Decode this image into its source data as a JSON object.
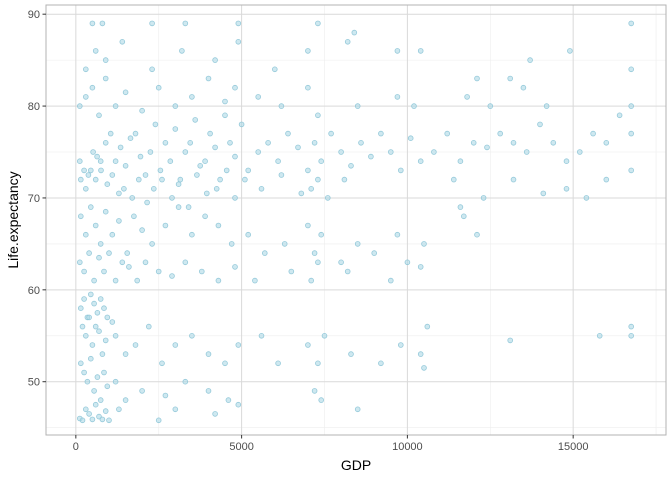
{
  "chart_data": {
    "type": "scatter",
    "title": "",
    "xlabel": "GDP",
    "ylabel": "Life.expectancy",
    "xlim": [
      -900,
      17800
    ],
    "ylim": [
      44.2,
      91
    ],
    "x_ticks": [
      0,
      5000,
      10000,
      15000
    ],
    "x_tick_labels": [
      "0",
      "5000",
      "10000",
      "15000"
    ],
    "y_ticks": [
      50,
      60,
      70,
      80,
      90
    ],
    "y_tick_labels": [
      "50",
      "60",
      "70",
      "80",
      "90"
    ],
    "grid": true,
    "legend": "none",
    "colors": {
      "point_fill": "#add8e6",
      "point_stroke": "#8cc4d6",
      "grid_major": "#d9d9d9",
      "grid_minor": "#ededed",
      "panel_border": "#b3b3b3",
      "background": "#ffffff"
    },
    "series": [
      {
        "points": [
          [
            120,
            74
          ],
          [
            250,
            73
          ],
          [
            380,
            72.5
          ],
          [
            520,
            75
          ],
          [
            640,
            74.5
          ],
          [
            760,
            73
          ],
          [
            900,
            76
          ],
          [
            1050,
            77
          ],
          [
            1200,
            74
          ],
          [
            1350,
            75.5
          ],
          [
            1500,
            73.5
          ],
          [
            1650,
            76.5
          ],
          [
            1800,
            77
          ],
          [
            1950,
            74.5
          ],
          [
            2100,
            72.5
          ],
          [
            2250,
            75
          ],
          [
            2400,
            78
          ],
          [
            2550,
            73
          ],
          [
            2700,
            76
          ],
          [
            2850,
            74
          ],
          [
            3000,
            77.5
          ],
          [
            3150,
            72
          ],
          [
            3300,
            75
          ],
          [
            3450,
            76
          ],
          [
            3600,
            78.5
          ],
          [
            3750,
            73.5
          ],
          [
            3900,
            74
          ],
          [
            4050,
            77
          ],
          [
            4200,
            75.5
          ],
          [
            4350,
            72
          ],
          [
            4500,
            79
          ],
          [
            4650,
            76
          ],
          [
            4800,
            74.5
          ],
          [
            5000,
            78
          ],
          [
            5200,
            73
          ],
          [
            5500,
            75
          ],
          [
            5800,
            76
          ],
          [
            6100,
            74
          ],
          [
            6400,
            77
          ],
          [
            6700,
            75.5
          ],
          [
            7000,
            73
          ],
          [
            7200,
            76
          ],
          [
            7400,
            74
          ],
          [
            7700,
            77
          ],
          [
            8000,
            75
          ],
          [
            8300,
            73.5
          ],
          [
            8600,
            76
          ],
          [
            8900,
            74.5
          ],
          [
            9200,
            77
          ],
          [
            9500,
            75
          ],
          [
            9800,
            73
          ],
          [
            10100,
            76.5
          ],
          [
            10400,
            74
          ],
          [
            10800,
            75
          ],
          [
            11200,
            77
          ],
          [
            11600,
            74
          ],
          [
            12000,
            76
          ],
          [
            12400,
            75.5
          ],
          [
            12800,
            77
          ],
          [
            13200,
            76
          ],
          [
            13600,
            75
          ],
          [
            14000,
            78
          ],
          [
            14400,
            76
          ],
          [
            14800,
            74
          ],
          [
            15200,
            75
          ],
          [
            15600,
            77
          ],
          [
            16000,
            76
          ],
          [
            16400,
            79
          ],
          [
            16750,
            80
          ],
          [
            16750,
            77
          ],
          [
            16750,
            84
          ],
          [
            16750,
            89
          ],
          [
            16750,
            73
          ],
          [
            16750,
            56
          ],
          [
            16750,
            55
          ],
          [
            150,
            72
          ],
          [
            300,
            71
          ],
          [
            450,
            73
          ],
          [
            600,
            72
          ],
          [
            750,
            74
          ],
          [
            950,
            71.5
          ],
          [
            1100,
            72.5
          ],
          [
            1300,
            70.5
          ],
          [
            1450,
            71
          ],
          [
            1700,
            70
          ],
          [
            1900,
            72
          ],
          [
            2150,
            69.5
          ],
          [
            2350,
            71
          ],
          [
            2600,
            72
          ],
          [
            2900,
            70
          ],
          [
            3100,
            71.5
          ],
          [
            3400,
            69
          ],
          [
            3650,
            72.5
          ],
          [
            3950,
            70.5
          ],
          [
            4250,
            71
          ],
          [
            4550,
            73
          ],
          [
            4800,
            70
          ],
          [
            5100,
            72
          ],
          [
            5600,
            71
          ],
          [
            6200,
            72.5
          ],
          [
            6800,
            70.5
          ],
          [
            7100,
            71
          ],
          [
            7300,
            72
          ],
          [
            7600,
            70
          ],
          [
            8100,
            72
          ],
          [
            150,
            68
          ],
          [
            300,
            66
          ],
          [
            450,
            69
          ],
          [
            600,
            67
          ],
          [
            750,
            65
          ],
          [
            900,
            68.5
          ],
          [
            1100,
            66
          ],
          [
            1300,
            67.5
          ],
          [
            1550,
            64
          ],
          [
            1750,
            68
          ],
          [
            2000,
            66.5
          ],
          [
            2300,
            65
          ],
          [
            2700,
            67
          ],
          [
            3100,
            69
          ],
          [
            3500,
            66
          ],
          [
            3900,
            68
          ],
          [
            4300,
            67
          ],
          [
            4700,
            65
          ],
          [
            5200,
            66
          ],
          [
            5700,
            64
          ],
          [
            6300,
            65
          ],
          [
            7000,
            67
          ],
          [
            7200,
            64
          ],
          [
            7400,
            66
          ],
          [
            8000,
            63
          ],
          [
            8500,
            65
          ],
          [
            9000,
            64
          ],
          [
            9700,
            66
          ],
          [
            10000,
            63
          ],
          [
            10500,
            65
          ],
          [
            120,
            63
          ],
          [
            250,
            62
          ],
          [
            400,
            64
          ],
          [
            550,
            61
          ],
          [
            700,
            63.5
          ],
          [
            850,
            62
          ],
          [
            1000,
            64
          ],
          [
            1200,
            61
          ],
          [
            1400,
            63
          ],
          [
            1600,
            62.5
          ],
          [
            1850,
            61
          ],
          [
            2100,
            63
          ],
          [
            2500,
            62
          ],
          [
            2900,
            61.5
          ],
          [
            3300,
            63
          ],
          [
            3800,
            62
          ],
          [
            4300,
            61
          ],
          [
            4800,
            62.5
          ],
          [
            5400,
            61
          ],
          [
            6500,
            62
          ],
          [
            7100,
            61
          ],
          [
            7300,
            63
          ],
          [
            8200,
            62
          ],
          [
            9500,
            61
          ],
          [
            10400,
            62.5
          ],
          [
            150,
            58
          ],
          [
            250,
            59
          ],
          [
            350,
            57
          ],
          [
            450,
            59.5
          ],
          [
            550,
            58.5
          ],
          [
            650,
            57.5
          ],
          [
            750,
            59
          ],
          [
            850,
            58
          ],
          [
            950,
            57
          ],
          [
            1100,
            56.5
          ],
          [
            200,
            56
          ],
          [
            300,
            55
          ],
          [
            400,
            57
          ],
          [
            500,
            54
          ],
          [
            600,
            56
          ],
          [
            700,
            55.5
          ],
          [
            800,
            53
          ],
          [
            900,
            54.5
          ],
          [
            1200,
            55
          ],
          [
            1500,
            53
          ],
          [
            1800,
            54
          ],
          [
            2200,
            56
          ],
          [
            2600,
            52
          ],
          [
            3000,
            54
          ],
          [
            3500,
            55
          ],
          [
            4000,
            53
          ],
          [
            4500,
            52
          ],
          [
            4900,
            54
          ],
          [
            5600,
            55
          ],
          [
            6100,
            52
          ],
          [
            7000,
            54
          ],
          [
            7300,
            52
          ],
          [
            7500,
            55
          ],
          [
            8300,
            53
          ],
          [
            9200,
            52
          ],
          [
            9800,
            54
          ],
          [
            10400,
            53
          ],
          [
            10500,
            51.5
          ],
          [
            150,
            52
          ],
          [
            250,
            51
          ],
          [
            350,
            50
          ],
          [
            450,
            52.5
          ],
          [
            550,
            49
          ],
          [
            650,
            50.5
          ],
          [
            750,
            48
          ],
          [
            850,
            51
          ],
          [
            950,
            49.5
          ],
          [
            1200,
            50
          ],
          [
            1500,
            48
          ],
          [
            2000,
            49
          ],
          [
            2700,
            48.5
          ],
          [
            3300,
            50
          ],
          [
            4000,
            49
          ],
          [
            4600,
            48
          ],
          [
            4900,
            47.5
          ],
          [
            7200,
            49
          ],
          [
            7400,
            48
          ],
          [
            8500,
            47
          ],
          [
            120,
            46
          ],
          [
            200,
            45.8
          ],
          [
            300,
            47
          ],
          [
            400,
            46.5
          ],
          [
            500,
            45.9
          ],
          [
            600,
            47.5
          ],
          [
            700,
            46.2
          ],
          [
            800,
            45.9
          ],
          [
            900,
            46.8
          ],
          [
            1000,
            45.8
          ],
          [
            1300,
            47
          ],
          [
            2500,
            45.8
          ],
          [
            3000,
            47
          ],
          [
            4200,
            46.5
          ],
          [
            120,
            80
          ],
          [
            300,
            81
          ],
          [
            500,
            82
          ],
          [
            700,
            79
          ],
          [
            900,
            83
          ],
          [
            1200,
            80
          ],
          [
            1500,
            81.5
          ],
          [
            2000,
            79.5
          ],
          [
            2500,
            82
          ],
          [
            3000,
            80
          ],
          [
            3500,
            81
          ],
          [
            4000,
            83
          ],
          [
            4500,
            80.5
          ],
          [
            4800,
            82
          ],
          [
            5500,
            81
          ],
          [
            6200,
            80
          ],
          [
            7000,
            82
          ],
          [
            7300,
            79
          ],
          [
            8500,
            80
          ],
          [
            9700,
            81
          ],
          [
            10200,
            80
          ],
          [
            11800,
            81
          ],
          [
            12500,
            80
          ],
          [
            13500,
            82
          ],
          [
            14200,
            80
          ],
          [
            300,
            84
          ],
          [
            600,
            86
          ],
          [
            900,
            85
          ],
          [
            1400,
            87
          ],
          [
            2300,
            84
          ],
          [
            3200,
            86
          ],
          [
            4200,
            85
          ],
          [
            4900,
            87
          ],
          [
            6000,
            84
          ],
          [
            7000,
            86
          ],
          [
            8200,
            87
          ],
          [
            9700,
            86
          ],
          [
            10400,
            86
          ],
          [
            12100,
            83
          ],
          [
            13100,
            83
          ],
          [
            14900,
            86
          ],
          [
            500,
            89
          ],
          [
            800,
            89
          ],
          [
            2300,
            89
          ],
          [
            3300,
            89
          ],
          [
            4900,
            89
          ],
          [
            7300,
            89
          ],
          [
            8400,
            88
          ],
          [
            13700,
            85
          ],
          [
            11400,
            72
          ],
          [
            11600,
            69
          ],
          [
            12300,
            70
          ],
          [
            13200,
            72
          ],
          [
            14100,
            70.5
          ],
          [
            14800,
            71
          ],
          [
            15400,
            70
          ],
          [
            16000,
            72
          ],
          [
            11700,
            68
          ],
          [
            12100,
            66
          ],
          [
            15800,
            55
          ],
          [
            13100,
            54.5
          ],
          [
            10600,
            56
          ]
        ]
      }
    ]
  }
}
